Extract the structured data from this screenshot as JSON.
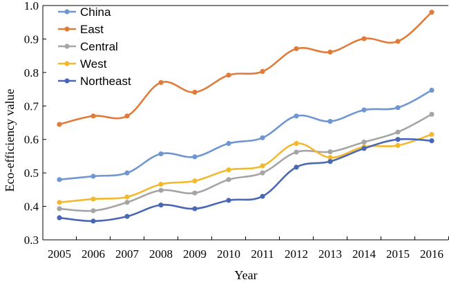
{
  "chart_data": {
    "type": "line",
    "title": "",
    "xlabel": "Year",
    "ylabel": "Eco-efficiency value",
    "categories": [
      "2005",
      "2006",
      "2007",
      "2008",
      "2009",
      "2010",
      "2011",
      "2012",
      "2013",
      "2014",
      "2015",
      "2016"
    ],
    "ylim": [
      0.3,
      1.0
    ],
    "yticks": [
      "0.3",
      "0.4",
      "0.5",
      "0.6",
      "0.7",
      "0.8",
      "0.9",
      "1.0"
    ],
    "grid": false,
    "legend_position": "top-left",
    "series": [
      {
        "name": "China",
        "color": "#6f96d1",
        "values": [
          0.48,
          0.49,
          0.5,
          0.557,
          0.548,
          0.588,
          0.605,
          0.67,
          0.654,
          0.688,
          0.695,
          0.747
        ]
      },
      {
        "name": "East",
        "color": "#e07b39",
        "values": [
          0.645,
          0.67,
          0.67,
          0.77,
          0.741,
          0.792,
          0.803,
          0.871,
          0.861,
          0.901,
          0.893,
          0.98
        ]
      },
      {
        "name": "Central",
        "color": "#a5a5a5",
        "values": [
          0.393,
          0.387,
          0.412,
          0.448,
          0.44,
          0.48,
          0.5,
          0.562,
          0.563,
          0.592,
          0.622,
          0.675
        ]
      },
      {
        "name": "West",
        "color": "#f2b92e",
        "values": [
          0.412,
          0.422,
          0.428,
          0.466,
          0.476,
          0.509,
          0.521,
          0.588,
          0.546,
          0.578,
          0.582,
          0.615
        ]
      },
      {
        "name": "Northeast",
        "color": "#4a67b3",
        "values": [
          0.366,
          0.356,
          0.37,
          0.404,
          0.393,
          0.418,
          0.43,
          0.517,
          0.534,
          0.573,
          0.6,
          0.596
        ]
      }
    ]
  }
}
